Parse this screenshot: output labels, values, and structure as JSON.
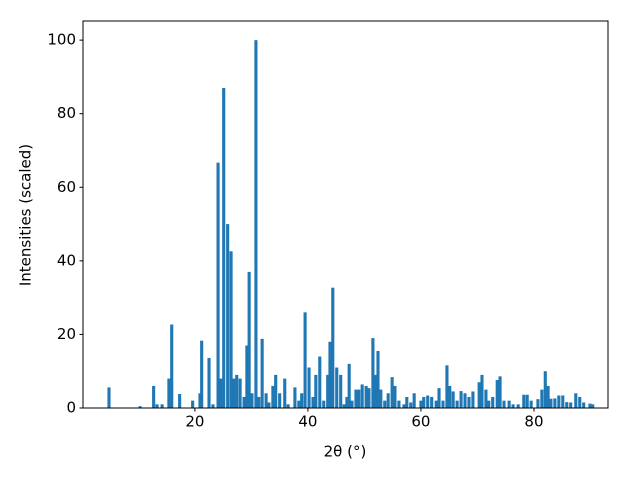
{
  "chart_data": {
    "type": "bar",
    "x_label": "2θ (°)",
    "y_label": "Intensities (scaled)",
    "color": "#1f77b4",
    "x": [
      4.8,
      10.3,
      12.7,
      13.3,
      14.2,
      15.4,
      15.9,
      17.3,
      19.6,
      20.9,
      21.2,
      22.5,
      23.2,
      24.1,
      24.6,
      25.1,
      25.8,
      26.4,
      26.9,
      27.4,
      28.0,
      28.7,
      29.2,
      29.6,
      30.1,
      30.8,
      31.3,
      31.9,
      32.6,
      33.1,
      33.8,
      34.3,
      35.0,
      35.9,
      36.5,
      37.7,
      38.4,
      38.9,
      39.5,
      40.2,
      40.9,
      41.4,
      42.1,
      42.8,
      43.5,
      43.9,
      44.4,
      45.1,
      45.8,
      46.4,
      46.9,
      47.3,
      47.8,
      48.5,
      49.0,
      49.6,
      50.3,
      50.8,
      51.5,
      51.9,
      52.4,
      52.9,
      53.6,
      54.2,
      54.9,
      55.4,
      56.1,
      57.0,
      57.5,
      58.2,
      58.8,
      60.0,
      60.5,
      61.2,
      61.9,
      62.7,
      63.2,
      63.9,
      64.6,
      65.1,
      65.7,
      66.4,
      67.1,
      67.8,
      68.5,
      69.2,
      70.3,
      70.8,
      71.5,
      72.0,
      72.7,
      73.5,
      74.0,
      74.7,
      75.6,
      76.3,
      77.2,
      78.2,
      78.8,
      79.5,
      80.7,
      81.4,
      82.0,
      82.5,
      83.0,
      83.7,
      84.4,
      85.1,
      85.8,
      86.5,
      87.4,
      88.1,
      88.8,
      89.9,
      90.4
    ],
    "values": [
      5.6,
      0.5,
      6,
      1,
      1,
      8,
      22.7,
      3.8,
      2,
      4,
      18.3,
      13.6,
      1,
      66.7,
      8,
      87,
      50,
      42.6,
      8,
      9,
      8,
      3,
      17,
      37,
      4,
      100,
      3,
      18.8,
      4,
      1.5,
      6,
      9,
      4,
      8,
      1,
      5.6,
      2,
      4,
      26,
      11,
      3,
      9,
      14,
      2,
      9,
      18,
      32.7,
      11,
      9,
      1,
      3,
      12,
      2,
      5,
      5,
      6.4,
      6,
      5.4,
      19,
      9,
      15.5,
      5,
      2,
      4,
      8.4,
      6,
      2,
      1,
      3,
      1.5,
      4,
      2,
      3,
      3.4,
      3,
      2,
      5.4,
      2,
      11.6,
      6,
      4.5,
      2,
      4.6,
      4,
      3,
      4.5,
      7,
      9,
      5,
      2,
      3,
      7.6,
      8.6,
      2,
      2,
      1,
      1,
      3.6,
      3.6,
      2,
      2.4,
      5,
      10,
      6,
      2.5,
      2.6,
      3.4,
      3.4,
      1.6,
      1.5,
      4,
      3,
      1.5,
      1.2,
      1
    ],
    "xlim": [
      0.2,
      93.1
    ],
    "ylim": [
      0,
      105.2
    ],
    "xticks": [
      20,
      40,
      60,
      80
    ],
    "yticks": [
      0,
      20,
      40,
      60,
      80,
      100
    ]
  }
}
